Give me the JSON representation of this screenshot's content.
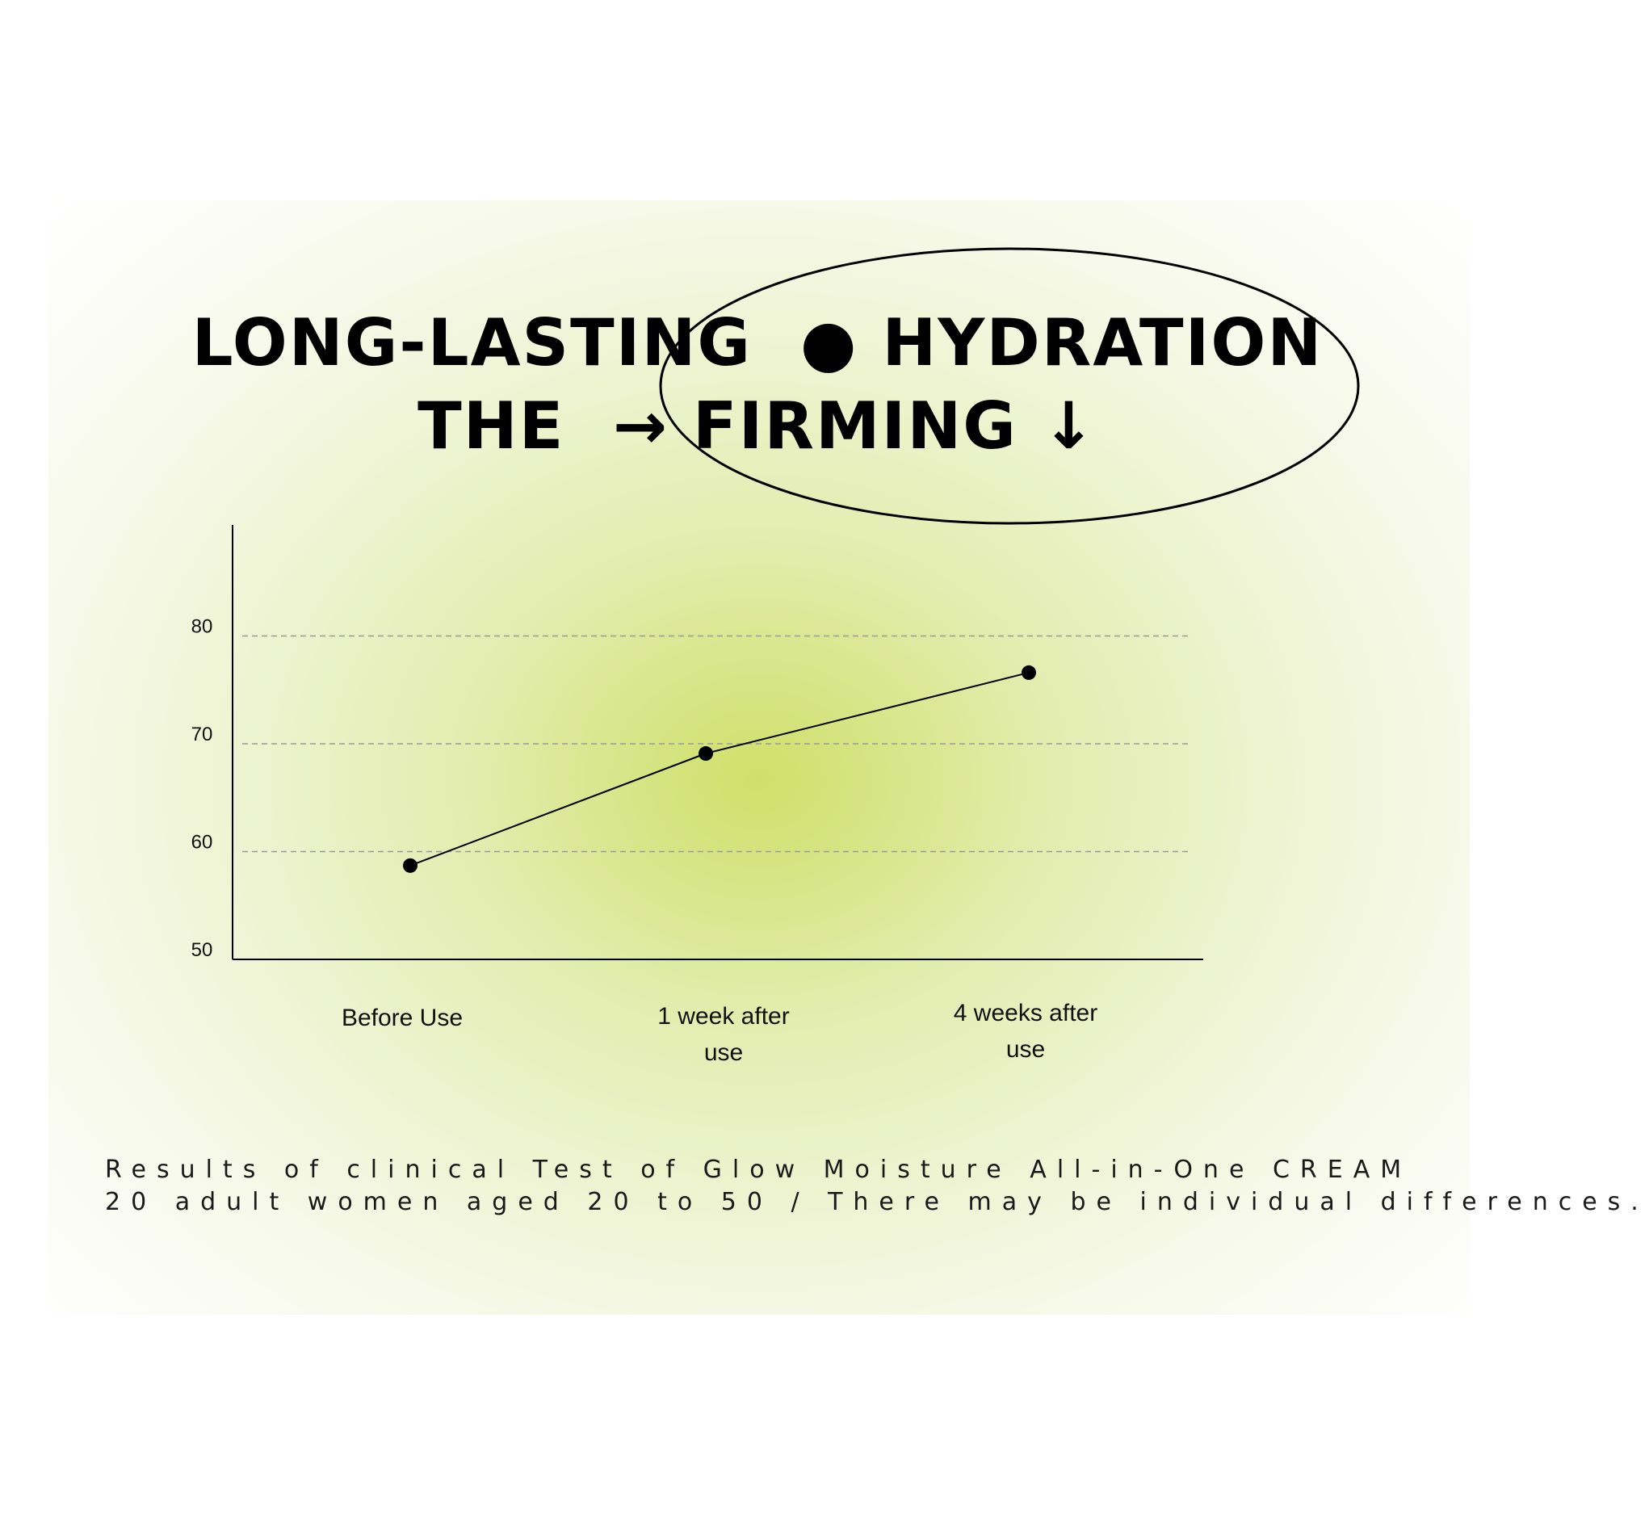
{
  "headline": {
    "line1": "LONG-LASTING  ● HYDRATION",
    "line2": "THE  → FIRMING ↓"
  },
  "chart_data": {
    "type": "line",
    "categories": [
      "Before Use",
      "1 week after use",
      "4 weeks after use"
    ],
    "category_labels": [
      [
        "Before  Use"
      ],
      [
        "1 week after",
        "use"
      ],
      [
        "4 weeks after",
        "use"
      ]
    ],
    "series": [
      {
        "values": [
          58.7,
          69.1,
          76.6
        ]
      }
    ],
    "yticks": [
      50,
      60,
      70,
      80
    ],
    "ylim": [
      50,
      90
    ],
    "grid": "dashed horizontal at 60, 70, 80",
    "legend": "none",
    "marker_color": "#000000",
    "line_color": "#000000",
    "grid_color": "#9a9a9a"
  },
  "caption": {
    "line1": "Results of clinical Test of Glow Moisture All-in-One CREAM",
    "line2": "20 adult women aged 20 to 50 / There may be individual differences."
  },
  "colors": {
    "glow_center": "#cfe06a",
    "background": "#ffffff",
    "text": "#000000"
  }
}
